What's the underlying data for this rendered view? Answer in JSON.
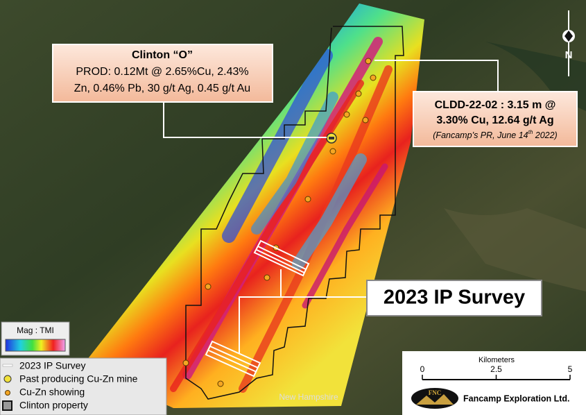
{
  "callout_clinton": {
    "title": "Clinton “O”",
    "lines": [
      "PROD: 0.12Mt @ 2.65%Cu, 2.43%",
      "Zn, 0.46% Pb, 30 g/t Ag, 0.45 g/t Au"
    ]
  },
  "callout_cldd": {
    "lines": [
      "CLDD-22-02 : 3.15 m @",
      "3.30% Cu, 12.64 g/t Ag"
    ],
    "source_pre": "(Fancamp’s PR, June 14",
    "source_sup": "th",
    "source_post": " 2022)"
  },
  "survey_label": "2023 IP Survey",
  "mag_legend": "Mag : TMI",
  "legend": [
    "2023 IP Survey",
    "Past producing Cu-Zn mine",
    "Cu-Zn showing",
    "Clinton property"
  ],
  "scale": {
    "title": "Kilometers",
    "ticks": [
      0,
      2.5,
      5
    ]
  },
  "logo": {
    "mark": "FNC",
    "company": "Fancamp Exploration Ltd."
  },
  "place": "New Hampshire",
  "north": "N"
}
